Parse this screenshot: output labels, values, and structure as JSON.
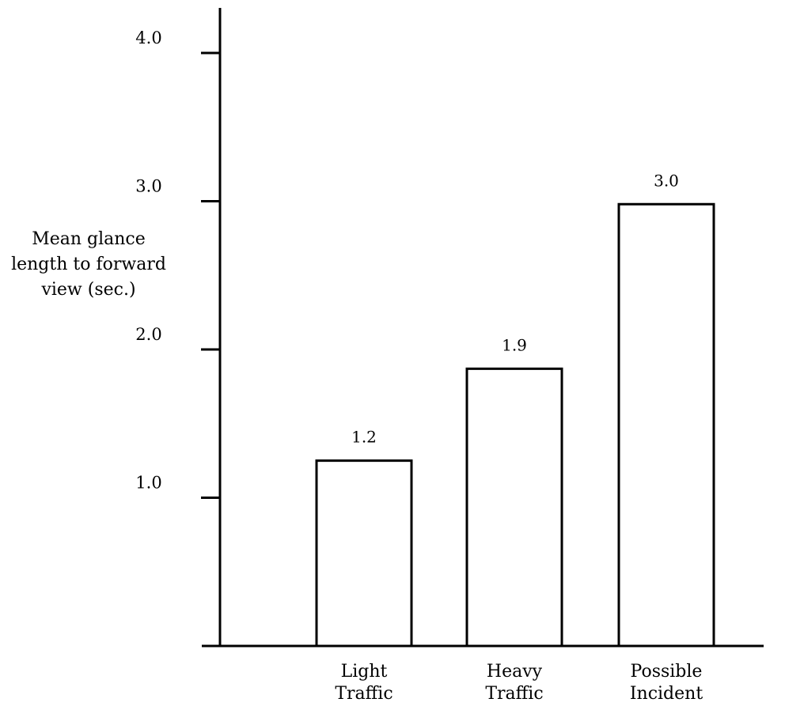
{
  "chart_data": {
    "type": "bar",
    "title": "",
    "xlabel": "",
    "ylabel_lines": [
      "Mean glance",
      "length to forward",
      "view (sec.)"
    ],
    "categories": [
      {
        "lines": [
          "Light",
          "Traffic"
        ]
      },
      {
        "lines": [
          "Heavy",
          "Traffic"
        ]
      },
      {
        "lines": [
          "Possible",
          "Incident"
        ]
      }
    ],
    "values": [
      1.25,
      1.87,
      2.98
    ],
    "value_labels": [
      "1.2",
      "1.9",
      "3.0"
    ],
    "yticks": [
      1.0,
      2.0,
      3.0,
      4.0
    ],
    "ytick_labels": [
      "1.0",
      "2.0",
      "3.0",
      "4.0"
    ],
    "ylim": [
      0,
      4.4
    ],
    "grid": false,
    "bar_fill": "#ffffff",
    "bar_stroke": "#000000"
  }
}
